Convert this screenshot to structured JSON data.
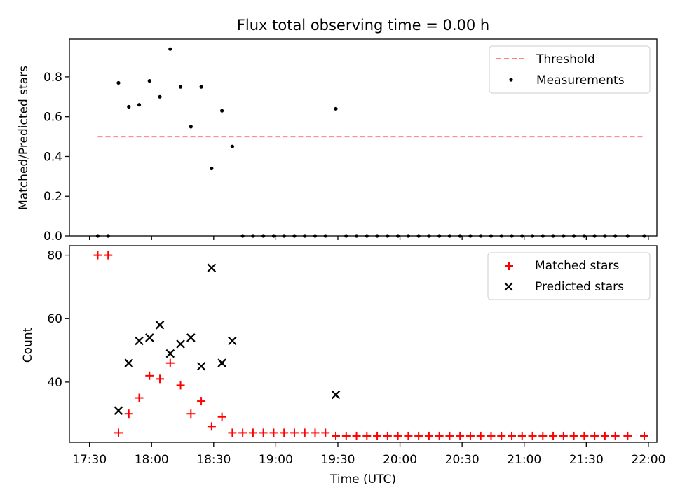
{
  "chart_data": {
    "title": "Flux total observing time = 0.00 h",
    "xlabel": "Time (UTC)",
    "x_ticks": [
      "17:30",
      "18:00",
      "18:30",
      "19:00",
      "19:30",
      "20:00",
      "20:30",
      "21:00",
      "21:30",
      "22:00"
    ],
    "top": {
      "type": "scatter",
      "ylabel": "Matched/Predicted stars",
      "ylim": [
        0,
        0.99
      ],
      "y_ticks": [
        "0.0",
        "0.2",
        "0.4",
        "0.6",
        "0.8"
      ],
      "legend_position": "upper right",
      "threshold": {
        "name": "Threshold",
        "value": 0.5,
        "x_start": "17:34",
        "x_end": "21:58",
        "color": "#ff7f7f"
      },
      "measurements": {
        "name": "Measurements",
        "color": "#000000",
        "points": [
          [
            "17:34",
            0
          ],
          [
            "17:39",
            0
          ],
          [
            "17:44",
            0.77
          ],
          [
            "17:49",
            0.65
          ],
          [
            "17:54",
            0.66
          ],
          [
            "17:59",
            0.78
          ],
          [
            "18:04",
            0.7
          ],
          [
            "18:09",
            0.94
          ],
          [
            "18:14",
            0.75
          ],
          [
            "18:19",
            0.55
          ],
          [
            "18:24",
            0.75
          ],
          [
            "18:29",
            0.34
          ],
          [
            "18:34",
            0.63
          ],
          [
            "18:39",
            0.45
          ],
          [
            "18:44",
            0
          ],
          [
            "18:49",
            0
          ],
          [
            "18:54",
            0
          ],
          [
            "18:59",
            0
          ],
          [
            "19:04",
            0
          ],
          [
            "19:09",
            0
          ],
          [
            "19:14",
            0
          ],
          [
            "19:19",
            0
          ],
          [
            "19:24",
            0
          ],
          [
            "19:29",
            0.64
          ],
          [
            "19:34",
            0
          ],
          [
            "19:39",
            0
          ],
          [
            "19:44",
            0
          ],
          [
            "19:49",
            0
          ],
          [
            "19:54",
            0
          ],
          [
            "19:59",
            0
          ],
          [
            "20:04",
            0
          ],
          [
            "20:09",
            0
          ],
          [
            "20:14",
            0
          ],
          [
            "20:19",
            0
          ],
          [
            "20:24",
            0
          ],
          [
            "20:29",
            0
          ],
          [
            "20:34",
            0
          ],
          [
            "20:39",
            0
          ],
          [
            "20:44",
            0
          ],
          [
            "20:49",
            0
          ],
          [
            "20:54",
            0
          ],
          [
            "20:59",
            0
          ],
          [
            "21:04",
            0
          ],
          [
            "21:09",
            0
          ],
          [
            "21:14",
            0
          ],
          [
            "21:19",
            0
          ],
          [
            "21:24",
            0
          ],
          [
            "21:29",
            0
          ],
          [
            "21:34",
            0
          ],
          [
            "21:39",
            0
          ],
          [
            "21:44",
            0
          ],
          [
            "21:50",
            0
          ],
          [
            "21:58",
            0
          ]
        ]
      }
    },
    "bottom": {
      "type": "scatter",
      "ylabel": "Count",
      "ylim": [
        21,
        83
      ],
      "y_ticks": [
        "40",
        "60",
        "80"
      ],
      "legend_position": "upper right",
      "matched": {
        "name": "Matched stars",
        "color": "#ff0000",
        "points": [
          [
            "17:34",
            80
          ],
          [
            "17:39",
            80
          ],
          [
            "17:44",
            24
          ],
          [
            "17:49",
            30
          ],
          [
            "17:54",
            35
          ],
          [
            "17:59",
            42
          ],
          [
            "18:04",
            41
          ],
          [
            "18:09",
            46
          ],
          [
            "18:14",
            39
          ],
          [
            "18:19",
            30
          ],
          [
            "18:24",
            34
          ],
          [
            "18:29",
            26
          ],
          [
            "18:34",
            29
          ],
          [
            "18:39",
            24
          ],
          [
            "18:44",
            24
          ],
          [
            "18:49",
            24
          ],
          [
            "18:54",
            24
          ],
          [
            "18:59",
            24
          ],
          [
            "19:04",
            24
          ],
          [
            "19:09",
            24
          ],
          [
            "19:14",
            24
          ],
          [
            "19:19",
            24
          ],
          [
            "19:24",
            24
          ],
          [
            "19:29",
            23
          ],
          [
            "19:34",
            23
          ],
          [
            "19:39",
            23
          ],
          [
            "19:44",
            23
          ],
          [
            "19:49",
            23
          ],
          [
            "19:54",
            23
          ],
          [
            "19:59",
            23
          ],
          [
            "20:04",
            23
          ],
          [
            "20:09",
            23
          ],
          [
            "20:14",
            23
          ],
          [
            "20:19",
            23
          ],
          [
            "20:24",
            23
          ],
          [
            "20:29",
            23
          ],
          [
            "20:34",
            23
          ],
          [
            "20:39",
            23
          ],
          [
            "20:44",
            23
          ],
          [
            "20:49",
            23
          ],
          [
            "20:54",
            23
          ],
          [
            "20:59",
            23
          ],
          [
            "21:04",
            23
          ],
          [
            "21:09",
            23
          ],
          [
            "21:14",
            23
          ],
          [
            "21:19",
            23
          ],
          [
            "21:24",
            23
          ],
          [
            "21:29",
            23
          ],
          [
            "21:34",
            23
          ],
          [
            "21:39",
            23
          ],
          [
            "21:44",
            23
          ],
          [
            "21:50",
            23
          ],
          [
            "21:58",
            23
          ]
        ]
      },
      "predicted": {
        "name": "Predicted stars",
        "color": "#000000",
        "points": [
          [
            "17:44",
            31
          ],
          [
            "17:49",
            46
          ],
          [
            "17:54",
            53
          ],
          [
            "17:59",
            54
          ],
          [
            "18:04",
            58
          ],
          [
            "18:09",
            49
          ],
          [
            "18:14",
            52
          ],
          [
            "18:19",
            54
          ],
          [
            "18:24",
            45
          ],
          [
            "18:29",
            76
          ],
          [
            "18:34",
            46
          ],
          [
            "18:39",
            53
          ],
          [
            "19:29",
            36
          ]
        ]
      }
    }
  }
}
